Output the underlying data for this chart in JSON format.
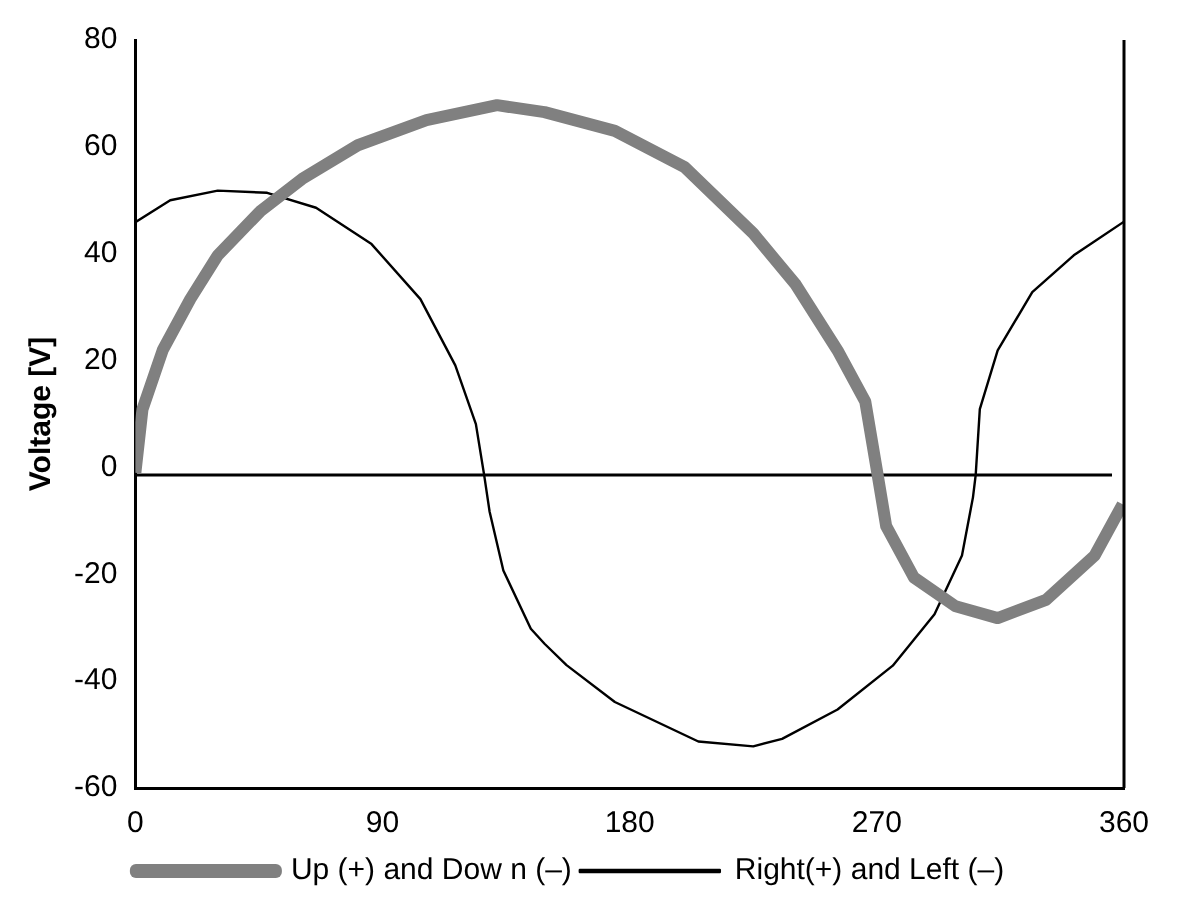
{
  "chart_data": {
    "type": "line",
    "ylabel": "Voltage [V]",
    "xlim": [
      0,
      360
    ],
    "xticks": [
      0,
      90,
      180,
      270,
      360
    ],
    "ylim": [
      -60,
      80
    ],
    "yticks": [
      -60,
      -40,
      -20,
      0,
      20,
      40,
      60,
      80
    ],
    "grid": false,
    "legend": "bottom",
    "marker": "none",
    "line_style": "solid",
    "ref_lines": [
      {
        "axis": "y",
        "value": -1.4,
        "color": "#000000"
      }
    ],
    "series": [
      {
        "name": "Up (+) and Dow n (–)",
        "color": "#808080",
        "x": [
          0,
          2.6,
          10,
          20,
          30,
          45.6,
          60.7,
          81,
          106,
          131.7,
          149,
          174.6,
          200,
          225,
          240.5,
          255.7,
          265.8,
          270.3,
          273.4,
          283.5,
          298.7,
          314,
          331.6,
          349.3,
          359.5
        ],
        "values": [
          -1,
          10.9,
          22,
          31.5,
          39.7,
          48,
          54,
          60.3,
          65,
          67.8,
          66.5,
          63,
          56.2,
          43.8,
          34.2,
          21.9,
          12.3,
          -1.4,
          -11,
          -20.6,
          -26,
          -28.2,
          -24.8,
          -16.5,
          -6.9
        ]
      },
      {
        "name": "Right(+) and Left (–)",
        "color": "#000000",
        "x": [
          0,
          12.7,
          30,
          48,
          65.8,
          86,
          103.8,
          116.5,
          124,
          127,
          129,
          134,
          144,
          149,
          157,
          174.6,
          205,
          225,
          235.5,
          255.7,
          275.8,
          291,
          301,
          305,
          306,
          307.5,
          314,
          326.6,
          341.7,
          360
        ],
        "values": [
          45.9,
          50,
          51.8,
          51.4,
          48.6,
          41.8,
          31.5,
          19.1,
          8.1,
          -1.4,
          -8.3,
          -19.3,
          -30.2,
          -33,
          -37,
          -43.9,
          -51.3,
          -52.2,
          -50.8,
          -45.3,
          -37.1,
          -27.5,
          -16.5,
          -5.6,
          -1.4,
          10.9,
          21.9,
          32.8,
          39.7,
          46
        ]
      }
    ]
  }
}
